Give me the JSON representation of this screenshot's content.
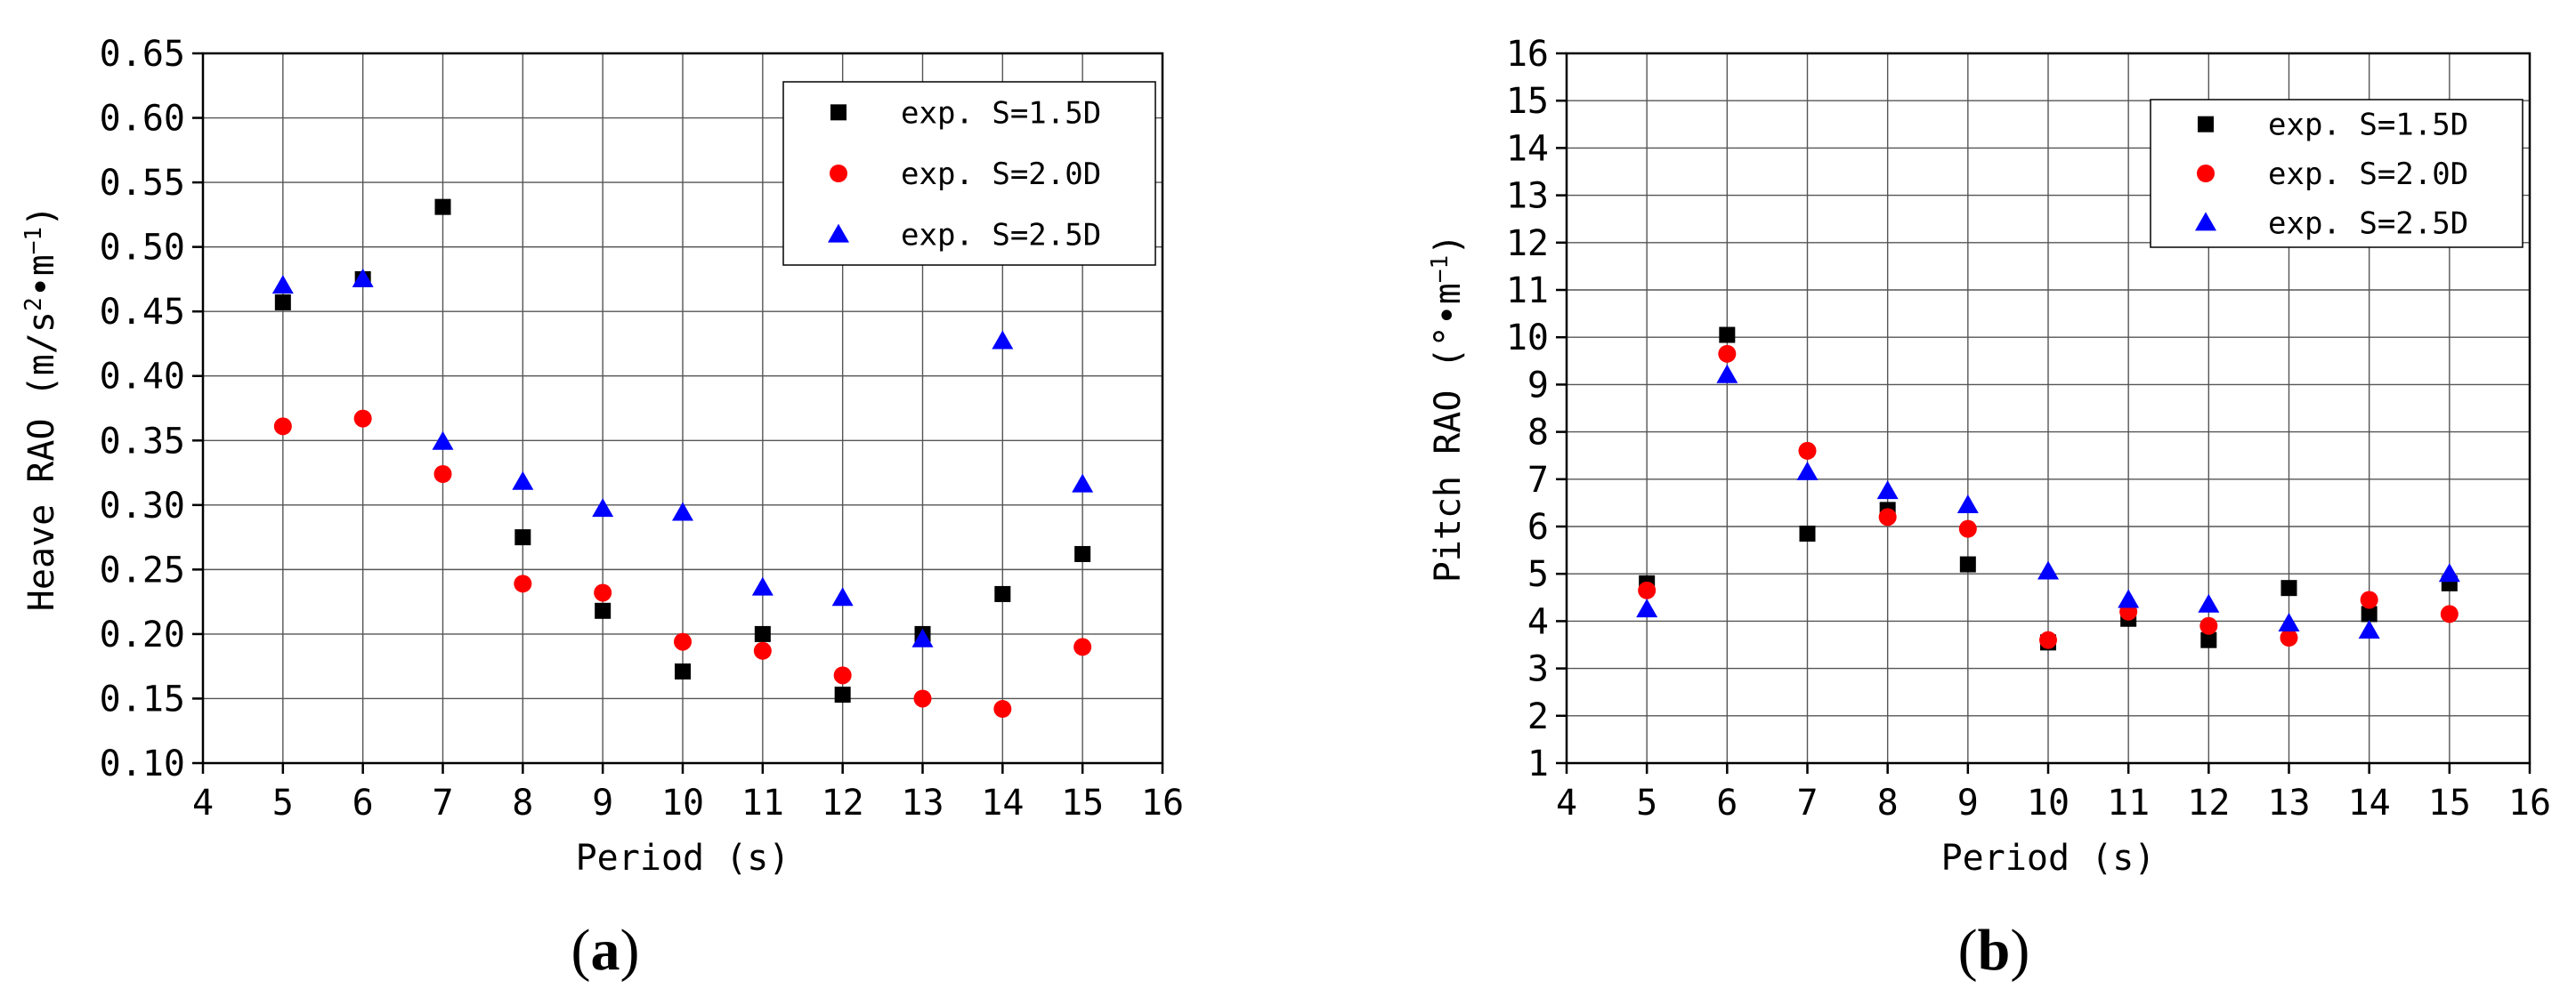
{
  "chart_data": [
    {
      "type": "scatter",
      "panel_label": "a",
      "xlabel": "Period (s)",
      "ylabel": "Heave RAO (m/s²•m⁻¹)",
      "ylabel_parts": [
        "Heave RAO (m/s",
        "2",
        "•m",
        "−1",
        ")"
      ],
      "xlim": [
        4,
        16
      ],
      "ylim": [
        0.1,
        0.65
      ],
      "xticks": [
        "4",
        "5",
        "6",
        "7",
        "8",
        "9",
        "10",
        "11",
        "12",
        "13",
        "14",
        "15",
        "16"
      ],
      "yticks": [
        "0.10",
        "0.15",
        "0.20",
        "0.25",
        "0.30",
        "0.35",
        "0.40",
        "0.45",
        "0.50",
        "0.55",
        "0.60",
        "0.65"
      ],
      "legend_position": "top-right",
      "x": [
        5,
        6,
        7,
        8,
        9,
        10,
        11,
        12,
        13,
        14,
        15
      ],
      "series": [
        {
          "name": "exp. S=1.5D",
          "marker": "square",
          "color": "#000000",
          "values": [
            0.457,
            0.475,
            0.531,
            0.275,
            0.218,
            0.171,
            0.2,
            0.153,
            0.2,
            0.231,
            0.262
          ]
        },
        {
          "name": "exp. S=2.0D",
          "marker": "circle",
          "color": "#ff0000",
          "values": [
            0.361,
            0.367,
            0.324,
            0.239,
            0.232,
            0.194,
            0.187,
            0.168,
            0.15,
            0.142,
            0.19
          ]
        },
        {
          "name": "exp. S=2.5D",
          "marker": "triangle",
          "color": "#0000ff",
          "values": [
            0.47,
            0.475,
            0.349,
            0.318,
            0.297,
            0.294,
            0.236,
            0.228,
            0.196,
            0.427,
            0.316
          ]
        }
      ]
    },
    {
      "type": "scatter",
      "panel_label": "b",
      "xlabel": "Period (s)",
      "ylabel": "Pitch RAO (°•m⁻¹)",
      "ylabel_parts": [
        "Pitch RAO (°•m",
        "−1",
        ")"
      ],
      "xlim": [
        4,
        16
      ],
      "ylim": [
        1,
        16
      ],
      "xticks": [
        "4",
        "5",
        "6",
        "7",
        "8",
        "9",
        "10",
        "11",
        "12",
        "13",
        "14",
        "15",
        "16"
      ],
      "yticks": [
        "1",
        "2",
        "3",
        "4",
        "5",
        "6",
        "7",
        "8",
        "9",
        "10",
        "11",
        "12",
        "13",
        "14",
        "15",
        "16"
      ],
      "legend_position": "top-right",
      "x": [
        5,
        6,
        7,
        8,
        9,
        10,
        11,
        12,
        13,
        14,
        15
      ],
      "series": [
        {
          "name": "exp. S=1.5D",
          "marker": "square",
          "color": "#000000",
          "values": [
            4.8,
            10.05,
            5.85,
            6.35,
            5.2,
            3.55,
            4.05,
            3.6,
            4.7,
            4.15,
            4.8
          ]
        },
        {
          "name": "exp. S=2.0D",
          "marker": "circle",
          "color": "#ff0000",
          "values": [
            4.65,
            9.65,
            7.6,
            6.2,
            5.95,
            3.6,
            4.2,
            3.9,
            3.65,
            4.45,
            4.15
          ]
        },
        {
          "name": "exp. S=2.5D",
          "marker": "triangle",
          "color": "#0000ff",
          "values": [
            4.25,
            9.2,
            7.15,
            6.75,
            6.45,
            5.05,
            4.45,
            4.35,
            3.95,
            3.8,
            5.0
          ]
        }
      ]
    }
  ]
}
